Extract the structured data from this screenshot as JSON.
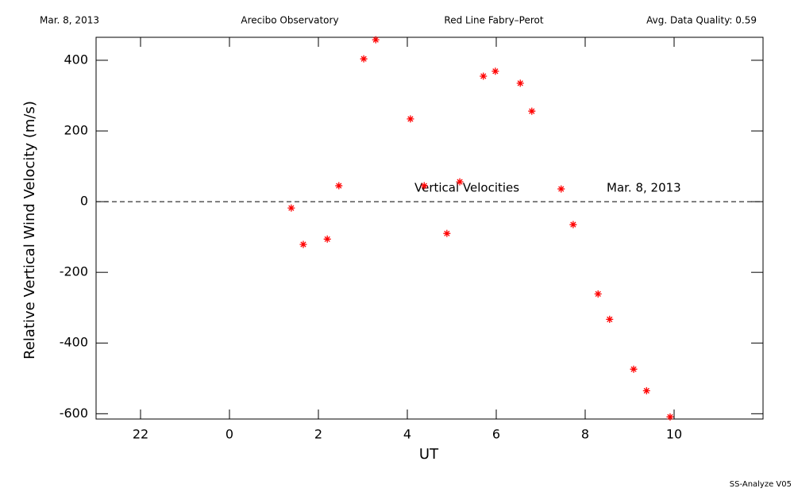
{
  "chart_data": {
    "type": "scatter",
    "header": [
      "Mar. 8, 2013",
      "Arecibo Observatory",
      "Red Line Fabry–Perot",
      "Avg. Data Quality: 0.59"
    ],
    "annotations": [
      "Vertical Velocities",
      "Mar. 8, 2013"
    ],
    "footer": "SS-Analyze V05",
    "x_label": "UT",
    "y_label": "Relative Vertical Wind Velocity (m/s)",
    "xlim": [
      -3,
      12
    ],
    "xticks": [
      {
        "value": -2,
        "label": "22"
      },
      0,
      2,
      4,
      6,
      8,
      10
    ],
    "ylim": [
      -615,
      465
    ],
    "yticks": [
      -600,
      -400,
      -200,
      0,
      200,
      400
    ],
    "reference_line": 0,
    "series": [
      {
        "name": "Vertical Velocities",
        "color": "#ff0000",
        "x": [
          1.39,
          1.66,
          2.2,
          2.46,
          3.02,
          3.29,
          4.07,
          4.38,
          4.89,
          5.18,
          5.71,
          5.98,
          6.54,
          6.8,
          7.46,
          7.73,
          8.29,
          8.55,
          9.09,
          9.38,
          9.91
        ],
        "values": [
          -18,
          -121,
          -106,
          45,
          404,
          458,
          234,
          45,
          -90,
          56,
          355,
          369,
          335,
          256,
          36,
          -65,
          -261,
          -333,
          -474,
          -535,
          -609
        ]
      }
    ]
  }
}
